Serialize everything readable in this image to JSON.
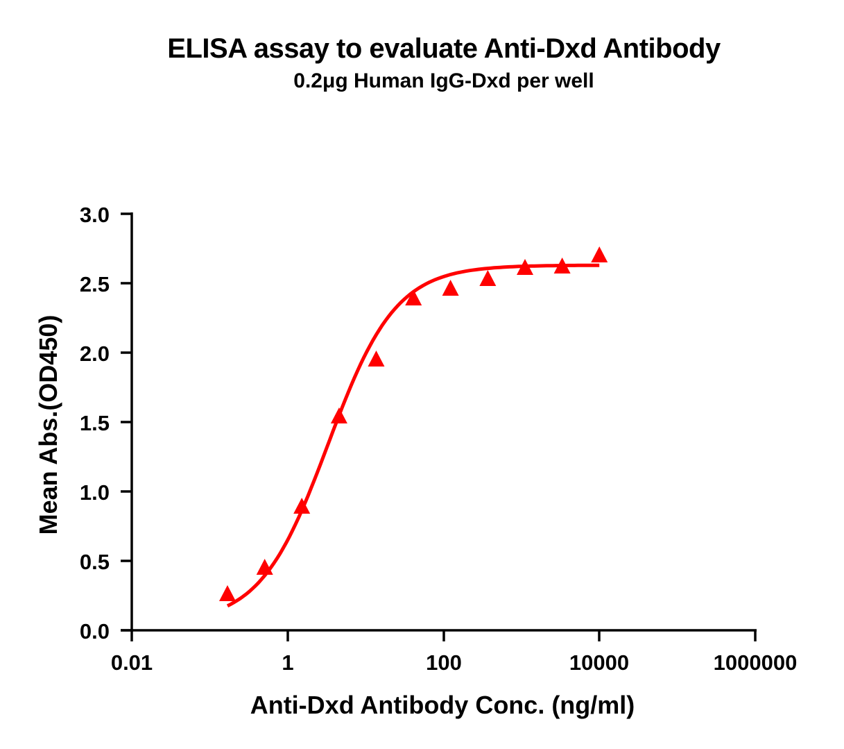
{
  "chart": {
    "title": "ELISA assay to evaluate Anti-Dxd Antibody",
    "subtitle": "0.2μg Human IgG-Dxd per well",
    "xlabel": "Anti-Dxd Antibody Conc. (ng/ml)",
    "ylabel": "Mean Abs.(OD450)",
    "series_color": "#ff0000"
  },
  "chart_data": {
    "type": "scatter",
    "title": "ELISA assay to evaluate Anti-Dxd Antibody",
    "subtitle": "0.2μg Human IgG-Dxd per well",
    "xlabel": "Anti-Dxd Antibody Conc. (ng/ml)",
    "ylabel": "Mean Abs.(OD450)",
    "xscale": "log",
    "xlim": [
      0.01,
      1000000
    ],
    "ylim": [
      0.0,
      3.0
    ],
    "xticks": [
      "0.01",
      "1",
      "100",
      "10000",
      "1000000"
    ],
    "yticks": [
      "0.0",
      "0.5",
      "1.0",
      "1.5",
      "2.0",
      "2.5",
      "3.0"
    ],
    "grid": false,
    "legend": null,
    "series": [
      {
        "name": "Anti-Dxd Antibody",
        "marker": "triangle",
        "color": "#ff0000",
        "fit": "4PL sigmoidal curve",
        "x": [
          0.169,
          0.508,
          1.52,
          4.57,
          13.7,
          41.2,
          123,
          370,
          1111,
          3333,
          10000
        ],
        "values": [
          0.26,
          0.45,
          0.89,
          1.54,
          1.95,
          2.39,
          2.46,
          2.53,
          2.61,
          2.62,
          2.7
        ]
      }
    ]
  }
}
